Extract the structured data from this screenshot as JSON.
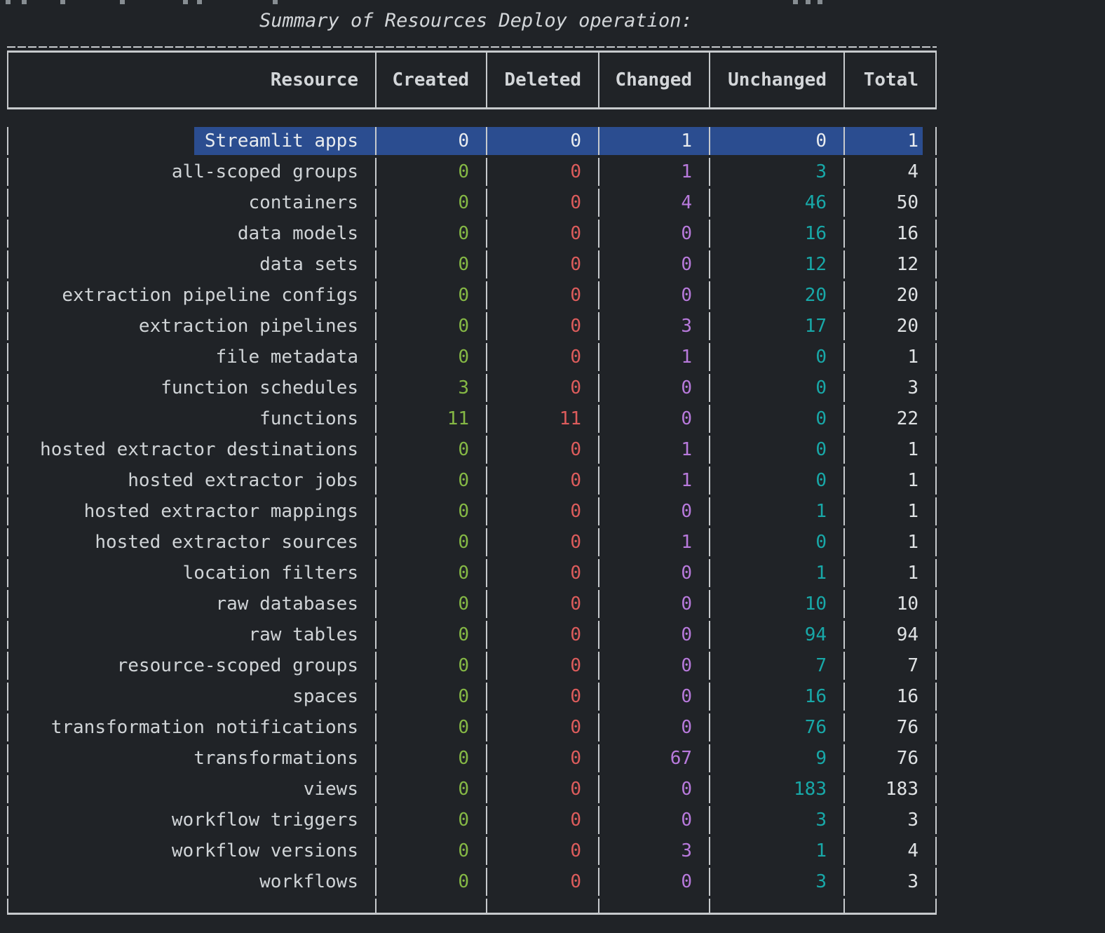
{
  "terminal": {
    "title": "Summary of Resources Deploy operation:"
  },
  "table": {
    "columns": [
      "Resource",
      "Created",
      "Deleted",
      "Changed",
      "Unchanged",
      "Total"
    ],
    "rows": [
      {
        "resource": "Streamlit apps",
        "created": "0",
        "deleted": "0",
        "changed": "1",
        "unchanged": "0",
        "total": "1",
        "selected": true
      },
      {
        "resource": "all-scoped groups",
        "created": "0",
        "deleted": "0",
        "changed": "1",
        "unchanged": "3",
        "total": "4"
      },
      {
        "resource": "containers",
        "created": "0",
        "deleted": "0",
        "changed": "4",
        "unchanged": "46",
        "total": "50"
      },
      {
        "resource": "data models",
        "created": "0",
        "deleted": "0",
        "changed": "0",
        "unchanged": "16",
        "total": "16"
      },
      {
        "resource": "data sets",
        "created": "0",
        "deleted": "0",
        "changed": "0",
        "unchanged": "12",
        "total": "12"
      },
      {
        "resource": "extraction pipeline configs",
        "created": "0",
        "deleted": "0",
        "changed": "0",
        "unchanged": "20",
        "total": "20"
      },
      {
        "resource": "extraction pipelines",
        "created": "0",
        "deleted": "0",
        "changed": "3",
        "unchanged": "17",
        "total": "20"
      },
      {
        "resource": "file metadata",
        "created": "0",
        "deleted": "0",
        "changed": "1",
        "unchanged": "0",
        "total": "1"
      },
      {
        "resource": "function schedules",
        "created": "3",
        "deleted": "0",
        "changed": "0",
        "unchanged": "0",
        "total": "3"
      },
      {
        "resource": "functions",
        "created": "11",
        "deleted": "11",
        "changed": "0",
        "unchanged": "0",
        "total": "22"
      },
      {
        "resource": "hosted extractor destinations",
        "created": "0",
        "deleted": "0",
        "changed": "1",
        "unchanged": "0",
        "total": "1"
      },
      {
        "resource": "hosted extractor jobs",
        "created": "0",
        "deleted": "0",
        "changed": "1",
        "unchanged": "0",
        "total": "1"
      },
      {
        "resource": "hosted extractor mappings",
        "created": "0",
        "deleted": "0",
        "changed": "0",
        "unchanged": "1",
        "total": "1"
      },
      {
        "resource": "hosted extractor sources",
        "created": "0",
        "deleted": "0",
        "changed": "1",
        "unchanged": "0",
        "total": "1"
      },
      {
        "resource": "location filters",
        "created": "0",
        "deleted": "0",
        "changed": "0",
        "unchanged": "1",
        "total": "1"
      },
      {
        "resource": "raw databases",
        "created": "0",
        "deleted": "0",
        "changed": "0",
        "unchanged": "10",
        "total": "10"
      },
      {
        "resource": "raw tables",
        "created": "0",
        "deleted": "0",
        "changed": "0",
        "unchanged": "94",
        "total": "94"
      },
      {
        "resource": "resource-scoped groups",
        "created": "0",
        "deleted": "0",
        "changed": "0",
        "unchanged": "7",
        "total": "7"
      },
      {
        "resource": "spaces",
        "created": "0",
        "deleted": "0",
        "changed": "0",
        "unchanged": "16",
        "total": "16"
      },
      {
        "resource": "transformation notifications",
        "created": "0",
        "deleted": "0",
        "changed": "0",
        "unchanged": "76",
        "total": "76"
      },
      {
        "resource": "transformations",
        "created": "0",
        "deleted": "0",
        "changed": "67",
        "unchanged": "9",
        "total": "76"
      },
      {
        "resource": "views",
        "created": "0",
        "deleted": "0",
        "changed": "0",
        "unchanged": "183",
        "total": "183"
      },
      {
        "resource": "workflow triggers",
        "created": "0",
        "deleted": "0",
        "changed": "0",
        "unchanged": "3",
        "total": "3"
      },
      {
        "resource": "workflow versions",
        "created": "0",
        "deleted": "0",
        "changed": "3",
        "unchanged": "1",
        "total": "4"
      },
      {
        "resource": "workflows",
        "created": "0",
        "deleted": "0",
        "changed": "0",
        "unchanged": "3",
        "total": "3"
      }
    ]
  },
  "colors": {
    "background": "#202327",
    "border": "#c7cacd",
    "created": "#85b845",
    "deleted": "#dd5c5c",
    "changed": "#b87adc",
    "unchanged": "#18a8a8",
    "total": "#dfe2e4",
    "selection": "#2b4d90"
  }
}
